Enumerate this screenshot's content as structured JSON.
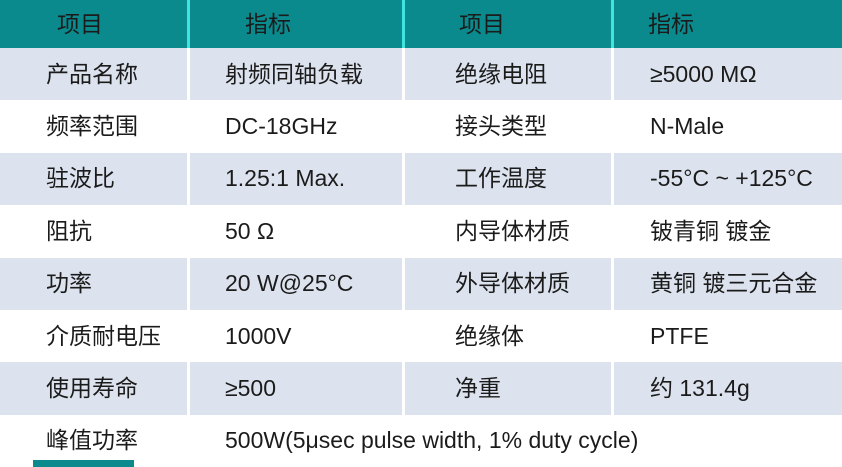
{
  "spec_table": {
    "header": {
      "columns": [
        "项目",
        "指标",
        "项目",
        "指标"
      ]
    },
    "rows": [
      {
        "label_left": "产品名称",
        "value_left": "射频同轴负载",
        "label_right": "绝缘电阻",
        "value_right": "≥5000 MΩ"
      },
      {
        "label_left": "频率范围",
        "value_left": "DC-18GHz",
        "label_right": "接头类型",
        "value_right": "N-Male"
      },
      {
        "label_left": "驻波比",
        "value_left": "1.25:1 Max.",
        "label_right": "工作温度",
        "value_right": "-55°C ~ +125°C"
      },
      {
        "label_left": "阻抗",
        "value_left": "50 Ω",
        "label_right": "内导体材质",
        "value_right": "铍青铜 镀金"
      },
      {
        "label_left": "功率",
        "value_left": "20 W@25°C",
        "label_right": "外导体材质",
        "value_right": "黄铜 镀三元合金"
      },
      {
        "label_left": "介质耐电压",
        "value_left": "1000V",
        "label_right": "绝缘体",
        "value_right": "PTFE"
      },
      {
        "label_left": "使用寿命",
        "value_left": "≥500",
        "label_right": "净重",
        "value_right": "约 131.4g"
      }
    ],
    "span_row": {
      "label": "峰值功率",
      "value": "500W(5μsec pulse width, 1% duty cycle)"
    },
    "colors": {
      "header_bg": "#0b8a8e",
      "header_divider": "#3fe3e0",
      "alt_row_bg": "#dce3ee",
      "row_bg": "#ffffff",
      "text": "#1b1b1b"
    }
  }
}
